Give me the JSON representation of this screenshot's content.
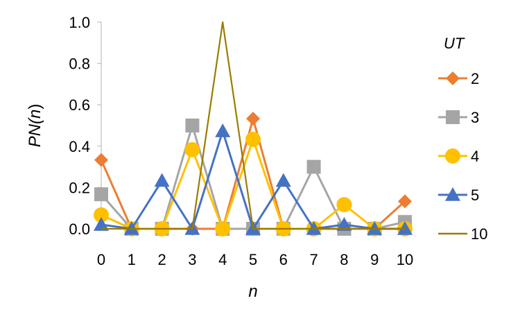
{
  "chart_data": {
    "type": "line",
    "x": [
      0,
      1,
      2,
      3,
      4,
      5,
      6,
      7,
      8,
      9,
      10
    ],
    "xlabel": "n",
    "ylabel_parts": [
      "PN(",
      "n",
      ")"
    ],
    "ylim": [
      0,
      1.0
    ],
    "yticks": [
      "0.0",
      "0.2",
      "0.4",
      "0.6",
      "0.8",
      "1.0"
    ],
    "xticks": [
      "0",
      "1",
      "2",
      "3",
      "4",
      "5",
      "6",
      "7",
      "8",
      "9",
      "10"
    ],
    "legend_title": "UT",
    "legend_position": "right",
    "grid": false,
    "series": [
      {
        "name": "2",
        "color": "#ED7D31",
        "marker": "diamond",
        "values": [
          0.333,
          0,
          0,
          0,
          0,
          0.533,
          0,
          0,
          0,
          0,
          0.133
        ]
      },
      {
        "name": "3",
        "color": "#A5A5A5",
        "marker": "square",
        "values": [
          0.167,
          0,
          0,
          0.5,
          0,
          0,
          0,
          0.3,
          0,
          0,
          0.033
        ]
      },
      {
        "name": "4",
        "color": "#FFC000",
        "marker": "circle",
        "values": [
          0.067,
          0,
          0,
          0.383,
          0,
          0.433,
          0,
          0,
          0.117,
          0,
          0.0
        ]
      },
      {
        "name": "5",
        "color": "#4472C4",
        "marker": "triangle",
        "values": [
          0.02,
          0,
          0.233,
          0,
          0.473,
          0,
          0.233,
          0,
          0.02,
          0,
          0
        ]
      },
      {
        "name": "10",
        "color": "#9C7A00",
        "marker": "none",
        "values": [
          0,
          0,
          0,
          0,
          1.0,
          0,
          0,
          0,
          0,
          0,
          0
        ]
      }
    ]
  }
}
